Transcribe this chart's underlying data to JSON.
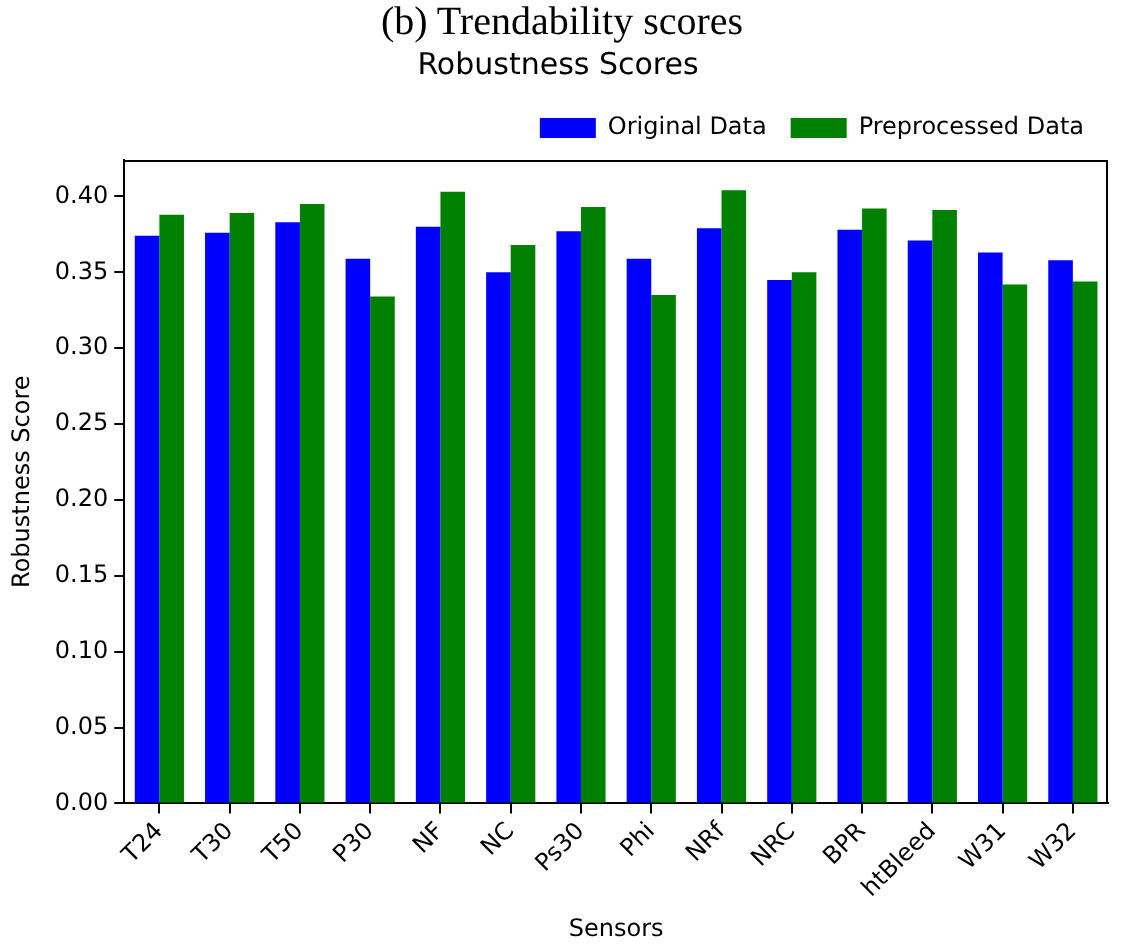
{
  "chart_data": {
    "type": "bar",
    "title": "Robustness Scores",
    "xlabel": "Sensors",
    "ylabel": "Robustness Score",
    "annotations": [
      "(b) Trendability scores"
    ],
    "categories": [
      "T24",
      "T30",
      "T50",
      "P30",
      "NF",
      "NC",
      "Ps30",
      "Phi",
      "NRf",
      "NRC",
      "BPR",
      "htBleed",
      "W31",
      "W32"
    ],
    "series": [
      {
        "name": "Original Data",
        "color": "#0000ff",
        "values": [
          0.374,
          0.376,
          0.383,
          0.359,
          0.38,
          0.35,
          0.377,
          0.359,
          0.379,
          0.345,
          0.378,
          0.371,
          0.363,
          0.358
        ]
      },
      {
        "name": "Preprocessed Data",
        "color": "#008000",
        "values": [
          0.388,
          0.389,
          0.395,
          0.334,
          0.403,
          0.368,
          0.393,
          0.335,
          0.404,
          0.35,
          0.392,
          0.391,
          0.342,
          0.344
        ]
      }
    ],
    "ylim": [
      0,
      0.424
    ],
    "yticks": [
      {
        "value": 0,
        "label": "0.00"
      },
      {
        "value": 0.05,
        "label": "0.05"
      },
      {
        "value": 0.1,
        "label": "0.10"
      },
      {
        "value": 0.15,
        "label": "0.15"
      },
      {
        "value": 0.2,
        "label": "0.20"
      },
      {
        "value": 0.25,
        "label": "0.25"
      },
      {
        "value": 0.3,
        "label": "0.30"
      },
      {
        "value": 0.35,
        "label": "0.35"
      },
      {
        "value": 0.4,
        "label": "0.40"
      }
    ],
    "grid": false,
    "legend": "top right"
  }
}
